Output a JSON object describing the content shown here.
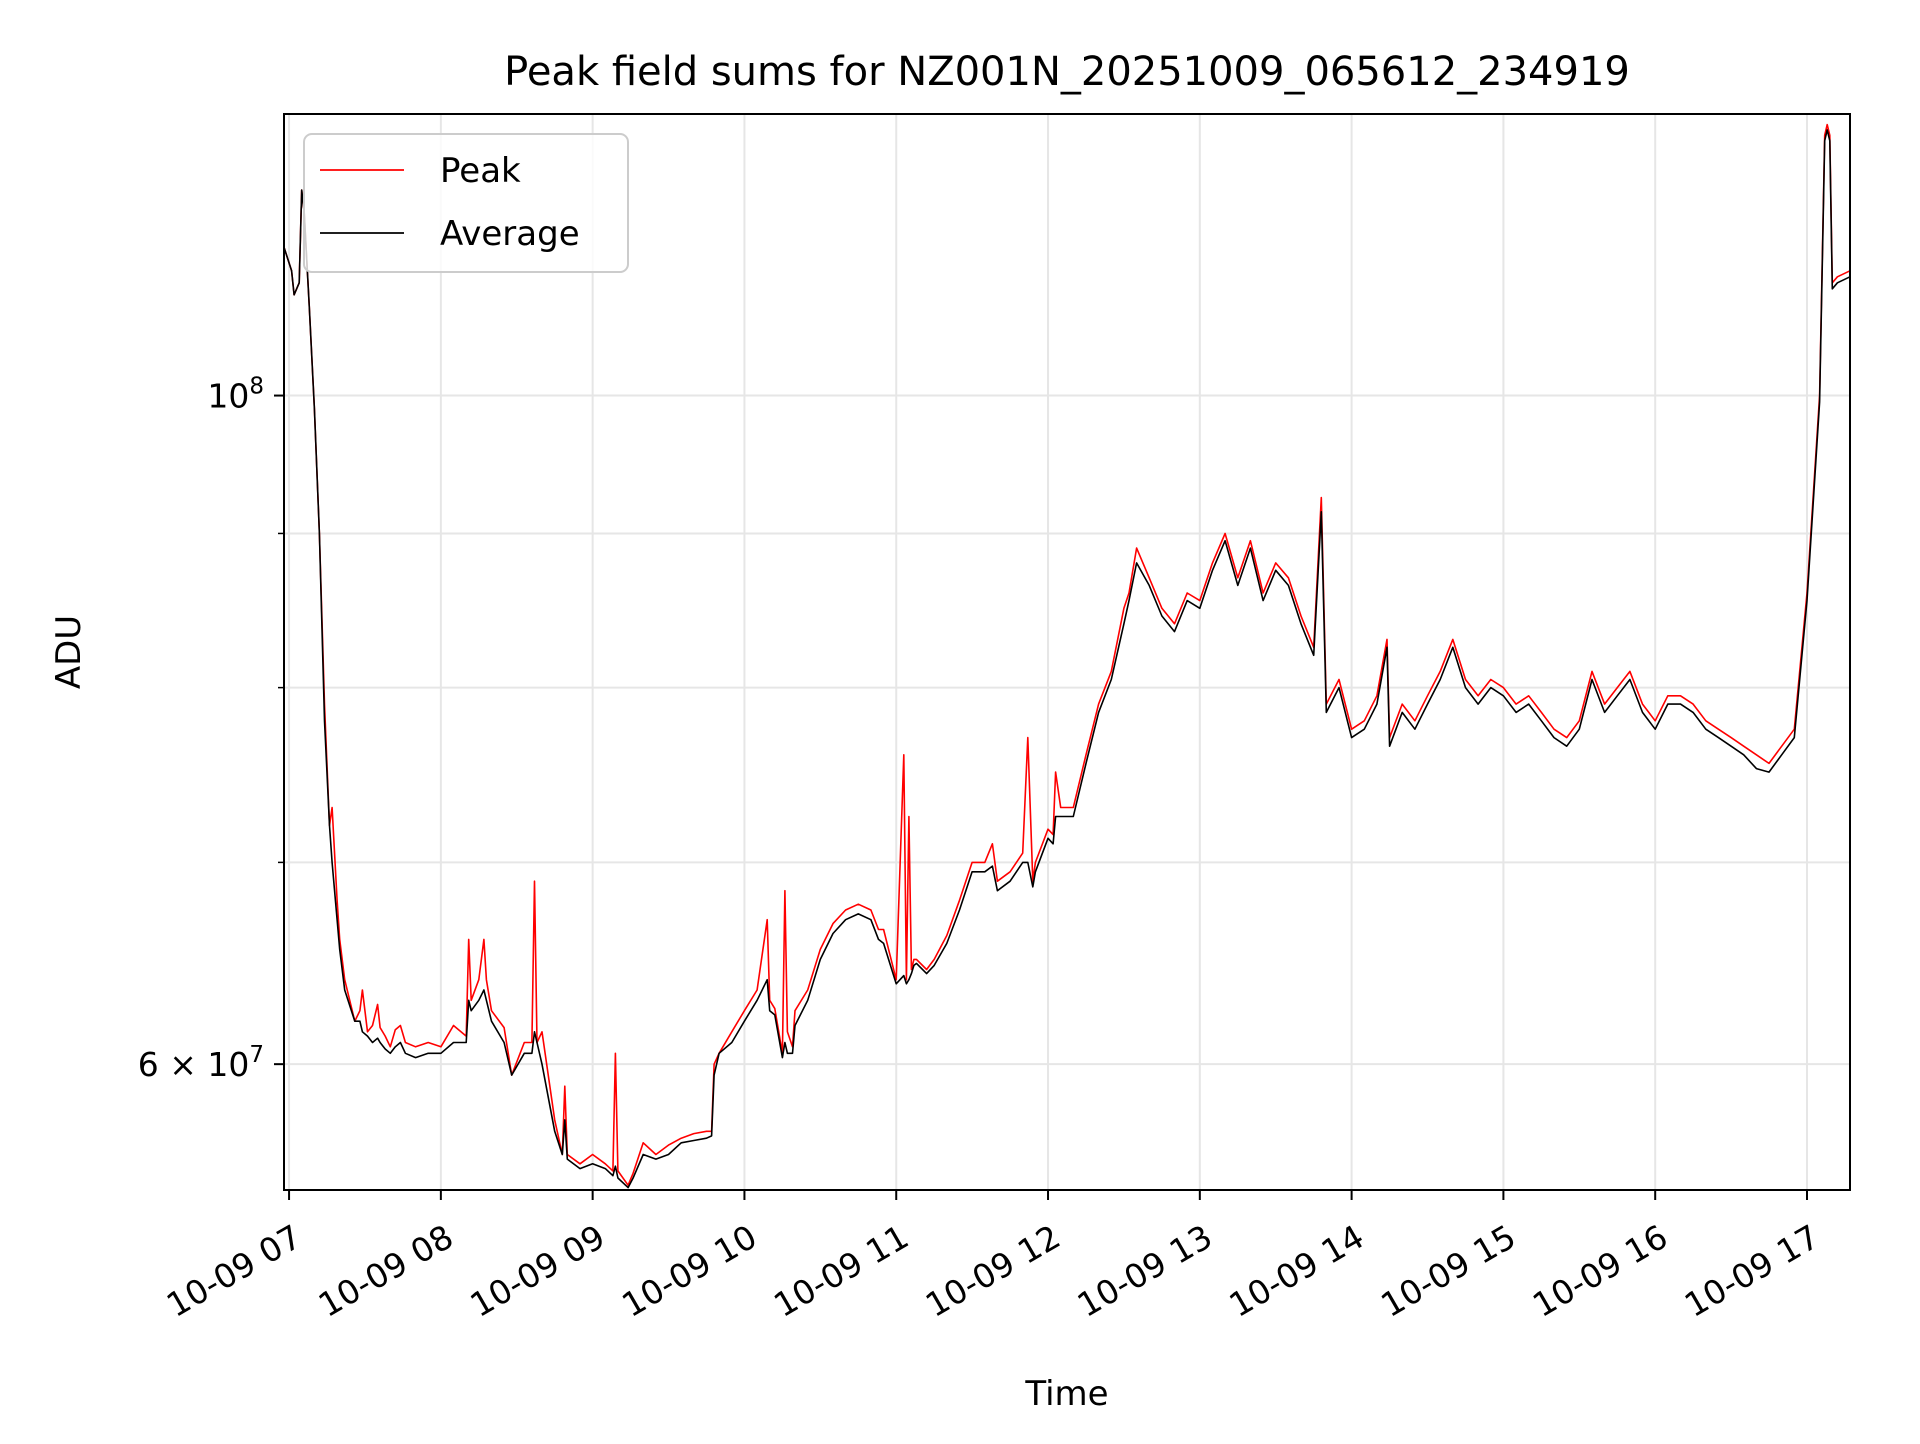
{
  "chart_data": {
    "type": "line",
    "title": "Peak field sums for NZ001N_20251009_065612_234919",
    "xlabel": "Time",
    "ylabel": "ADU",
    "y_scale": "log",
    "grid": true,
    "legend_position": "upper-left",
    "xlim": [
      "2025-10-09 06:58",
      "2025-10-09 17:17"
    ],
    "ylim": [
      54500000,
      124000000
    ],
    "x_ticks": [
      {
        "value": "2025-10-09 07:00",
        "label": "10-09 07"
      },
      {
        "value": "2025-10-09 08:00",
        "label": "10-09 08"
      },
      {
        "value": "2025-10-09 09:00",
        "label": "10-09 09"
      },
      {
        "value": "2025-10-09 10:00",
        "label": "10-09 10"
      },
      {
        "value": "2025-10-09 11:00",
        "label": "10-09 11"
      },
      {
        "value": "2025-10-09 12:00",
        "label": "10-09 12"
      },
      {
        "value": "2025-10-09 13:00",
        "label": "10-09 13"
      },
      {
        "value": "2025-10-09 14:00",
        "label": "10-09 14"
      },
      {
        "value": "2025-10-09 15:00",
        "label": "10-09 15"
      },
      {
        "value": "2025-10-09 16:00",
        "label": "10-09 16"
      },
      {
        "value": "2025-10-09 17:00",
        "label": "10-09 17"
      }
    ],
    "y_ticks_major": [
      {
        "value": 60000000,
        "label_base": "6 × 10",
        "label_exp": "7"
      },
      {
        "value": 100000000,
        "label_base": "10",
        "label_exp": "8"
      }
    ],
    "y_ticks_minor": [
      70000000,
      80000000,
      90000000
    ],
    "series": [
      {
        "name": "Peak",
        "color": "#ff0000",
        "x": [
          "2025-10-09 06:58",
          "2025-10-09 07:01",
          "2025-10-09 07:02",
          "2025-10-09 07:04",
          "2025-10-09 07:05",
          "2025-10-09 07:06",
          "2025-10-09 07:08",
          "2025-10-09 07:10",
          "2025-10-09 07:12",
          "2025-10-09 07:14",
          "2025-10-09 07:16",
          "2025-10-09 07:17",
          "2025-10-09 07:19",
          "2025-10-09 07:20",
          "2025-10-09 07:22",
          "2025-10-09 07:26",
          "2025-10-09 07:28",
          "2025-10-09 07:29",
          "2025-10-09 07:31",
          "2025-10-09 07:33",
          "2025-10-09 07:35",
          "2025-10-09 07:36",
          "2025-10-09 07:38",
          "2025-10-09 07:40",
          "2025-10-09 07:42",
          "2025-10-09 07:44",
          "2025-10-09 07:46",
          "2025-10-09 07:50",
          "2025-10-09 07:55",
          "2025-10-09 08:00",
          "2025-10-09 08:05",
          "2025-10-09 08:10",
          "2025-10-09 08:11",
          "2025-10-09 08:12",
          "2025-10-09 08:15",
          "2025-10-09 08:17",
          "2025-10-09 08:18",
          "2025-10-09 08:20",
          "2025-10-09 08:25",
          "2025-10-09 08:28",
          "2025-10-09 08:33",
          "2025-10-09 08:36",
          "2025-10-09 08:37",
          "2025-10-09 08:38",
          "2025-10-09 08:40",
          "2025-10-09 08:45",
          "2025-10-09 08:48",
          "2025-10-09 08:49",
          "2025-10-09 08:50",
          "2025-10-09 08:55",
          "2025-10-09 09:00",
          "2025-10-09 09:05",
          "2025-10-09 09:08",
          "2025-10-09 09:09",
          "2025-10-09 09:10",
          "2025-10-09 09:14",
          "2025-10-09 09:16",
          "2025-10-09 09:20",
          "2025-10-09 09:25",
          "2025-10-09 09:30",
          "2025-10-09 09:35",
          "2025-10-09 09:40",
          "2025-10-09 09:45",
          "2025-10-09 09:47",
          "2025-10-09 09:48",
          "2025-10-09 09:50",
          "2025-10-09 09:55",
          "2025-10-09 10:00",
          "2025-10-09 10:05",
          "2025-10-09 10:09",
          "2025-10-09 10:10",
          "2025-10-09 10:12",
          "2025-10-09 10:15",
          "2025-10-09 10:16",
          "2025-10-09 10:17",
          "2025-10-09 10:19",
          "2025-10-09 10:20",
          "2025-10-09 10:25",
          "2025-10-09 10:30",
          "2025-10-09 10:35",
          "2025-10-09 10:40",
          "2025-10-09 10:45",
          "2025-10-09 10:50",
          "2025-10-09 10:53",
          "2025-10-09 10:55",
          "2025-10-09 11:00",
          "2025-10-09 11:03",
          "2025-10-09 11:04",
          "2025-10-09 11:05",
          "2025-10-09 11:06",
          "2025-10-09 11:07",
          "2025-10-09 11:08",
          "2025-10-09 11:12",
          "2025-10-09 11:15",
          "2025-10-09 11:20",
          "2025-10-09 11:25",
          "2025-10-09 11:30",
          "2025-10-09 11:35",
          "2025-10-09 11:38",
          "2025-10-09 11:40",
          "2025-10-09 11:45",
          "2025-10-09 11:50",
          "2025-10-09 11:52",
          "2025-10-09 11:54",
          "2025-10-09 11:55",
          "2025-10-09 12:00",
          "2025-10-09 12:02",
          "2025-10-09 12:03",
          "2025-10-09 12:05",
          "2025-10-09 12:10",
          "2025-10-09 12:15",
          "2025-10-09 12:20",
          "2025-10-09 12:25",
          "2025-10-09 12:30",
          "2025-10-09 12:32",
          "2025-10-09 12:35",
          "2025-10-09 12:40",
          "2025-10-09 12:45",
          "2025-10-09 12:50",
          "2025-10-09 12:55",
          "2025-10-09 13:00",
          "2025-10-09 13:05",
          "2025-10-09 13:10",
          "2025-10-09 13:15",
          "2025-10-09 13:20",
          "2025-10-09 13:25",
          "2025-10-09 13:30",
          "2025-10-09 13:35",
          "2025-10-09 13:40",
          "2025-10-09 13:45",
          "2025-10-09 13:48",
          "2025-10-09 13:50",
          "2025-10-09 13:55",
          "2025-10-09 14:00",
          "2025-10-09 14:05",
          "2025-10-09 14:10",
          "2025-10-09 14:14",
          "2025-10-09 14:15",
          "2025-10-09 14:20",
          "2025-10-09 14:25",
          "2025-10-09 14:30",
          "2025-10-09 14:35",
          "2025-10-09 14:40",
          "2025-10-09 14:45",
          "2025-10-09 14:50",
          "2025-10-09 14:55",
          "2025-10-09 15:00",
          "2025-10-09 15:05",
          "2025-10-09 15:10",
          "2025-10-09 15:15",
          "2025-10-09 15:20",
          "2025-10-09 15:25",
          "2025-10-09 15:30",
          "2025-10-09 15:35",
          "2025-10-09 15:40",
          "2025-10-09 15:45",
          "2025-10-09 15:50",
          "2025-10-09 15:55",
          "2025-10-09 16:00",
          "2025-10-09 16:05",
          "2025-10-09 16:10",
          "2025-10-09 16:15",
          "2025-10-09 16:20",
          "2025-10-09 16:25",
          "2025-10-09 16:30",
          "2025-10-09 16:35",
          "2025-10-09 16:40",
          "2025-10-09 16:45",
          "2025-10-09 16:50",
          "2025-10-09 16:55",
          "2025-10-09 17:00",
          "2025-10-09 17:05",
          "2025-10-09 17:07",
          "2025-10-09 17:08",
          "2025-10-09 17:09",
          "2025-10-09 17:10",
          "2025-10-09 17:12",
          "2025-10-09 17:17"
        ],
        "values": [
          112000000,
          110000000,
          108000000,
          109000000,
          117000000,
          115000000,
          107000000,
          99000000,
          90000000,
          79000000,
          72000000,
          73000000,
          68000000,
          66000000,
          64000000,
          62000000,
          62500000,
          63500000,
          61500000,
          61800000,
          62800000,
          61700000,
          61300000,
          60800000,
          61600000,
          61800000,
          61000000,
          60800000,
          61000000,
          60800000,
          61800000,
          61300000,
          66000000,
          63000000,
          64000000,
          66000000,
          64000000,
          62500000,
          61700000,
          59500000,
          61000000,
          61000000,
          69000000,
          61000000,
          61500000,
          57500000,
          56000000,
          59000000,
          56000000,
          55600000,
          56000000,
          55600000,
          55300000,
          60500000,
          55300000,
          54700000,
          55200000,
          56500000,
          56000000,
          56400000,
          56700000,
          56900000,
          57000000,
          57000000,
          60000000,
          60500000,
          61500000,
          62500000,
          63500000,
          67000000,
          63000000,
          62600000,
          60500000,
          68500000,
          61500000,
          60800000,
          62500000,
          63500000,
          65500000,
          66800000,
          67500000,
          67800000,
          67500000,
          66500000,
          66500000,
          64000000,
          76000000,
          64000000,
          72500000,
          64500000,
          65000000,
          65000000,
          64500000,
          65000000,
          66200000,
          68000000,
          70000000,
          70000000,
          71000000,
          69000000,
          69500000,
          70500000,
          77000000,
          69000000,
          70000000,
          71800000,
          71500000,
          75000000,
          73000000,
          73000000,
          76000000,
          79000000,
          81000000,
          85000000,
          86000000,
          89000000,
          87000000,
          85000000,
          84000000,
          86000000,
          85500000,
          88000000,
          90000000,
          87000000,
          89500000,
          86000000,
          88000000,
          87000000,
          84500000,
          82500000,
          92500000,
          79000000,
          80500000,
          77500000,
          78000000,
          79500000,
          83000000,
          77000000,
          79000000,
          78000000,
          79500000,
          81000000,
          83000000,
          80500000,
          79500000,
          80500000,
          80000000,
          79000000,
          79500000,
          78500000,
          77500000,
          77000000,
          78000000,
          81000000,
          79000000,
          80000000,
          81000000,
          79000000,
          78000000,
          79500000,
          79500000,
          79000000,
          78000000,
          77500000,
          77000000,
          76500000,
          76000000,
          75500000,
          76500000,
          77500000,
          86000000,
          100000000,
          122000000,
          123000000,
          122000000,
          109000000,
          109500000,
          110000000
        ]
      },
      {
        "name": "Average",
        "color": "#000000",
        "x": [
          "2025-10-09 06:58",
          "2025-10-09 07:01",
          "2025-10-09 07:02",
          "2025-10-09 07:04",
          "2025-10-09 07:05",
          "2025-10-09 07:06",
          "2025-10-09 07:08",
          "2025-10-09 07:10",
          "2025-10-09 07:12",
          "2025-10-09 07:14",
          "2025-10-09 07:16",
          "2025-10-09 07:17",
          "2025-10-09 07:19",
          "2025-10-09 07:20",
          "2025-10-09 07:22",
          "2025-10-09 07:26",
          "2025-10-09 07:28",
          "2025-10-09 07:29",
          "2025-10-09 07:31",
          "2025-10-09 07:33",
          "2025-10-09 07:35",
          "2025-10-09 07:36",
          "2025-10-09 07:38",
          "2025-10-09 07:40",
          "2025-10-09 07:42",
          "2025-10-09 07:44",
          "2025-10-09 07:46",
          "2025-10-09 07:50",
          "2025-10-09 07:55",
          "2025-10-09 08:00",
          "2025-10-09 08:05",
          "2025-10-09 08:10",
          "2025-10-09 08:11",
          "2025-10-09 08:12",
          "2025-10-09 08:15",
          "2025-10-09 08:17",
          "2025-10-09 08:18",
          "2025-10-09 08:20",
          "2025-10-09 08:25",
          "2025-10-09 08:28",
          "2025-10-09 08:33",
          "2025-10-09 08:36",
          "2025-10-09 08:37",
          "2025-10-09 08:38",
          "2025-10-09 08:40",
          "2025-10-09 08:45",
          "2025-10-09 08:48",
          "2025-10-09 08:49",
          "2025-10-09 08:50",
          "2025-10-09 08:55",
          "2025-10-09 09:00",
          "2025-10-09 09:05",
          "2025-10-09 09:08",
          "2025-10-09 09:09",
          "2025-10-09 09:10",
          "2025-10-09 09:14",
          "2025-10-09 09:16",
          "2025-10-09 09:20",
          "2025-10-09 09:25",
          "2025-10-09 09:30",
          "2025-10-09 09:35",
          "2025-10-09 09:40",
          "2025-10-09 09:45",
          "2025-10-09 09:47",
          "2025-10-09 09:48",
          "2025-10-09 09:50",
          "2025-10-09 09:55",
          "2025-10-09 10:00",
          "2025-10-09 10:05",
          "2025-10-09 10:09",
          "2025-10-09 10:10",
          "2025-10-09 10:12",
          "2025-10-09 10:15",
          "2025-10-09 10:16",
          "2025-10-09 10:17",
          "2025-10-09 10:19",
          "2025-10-09 10:20",
          "2025-10-09 10:25",
          "2025-10-09 10:30",
          "2025-10-09 10:35",
          "2025-10-09 10:40",
          "2025-10-09 10:45",
          "2025-10-09 10:50",
          "2025-10-09 10:53",
          "2025-10-09 10:55",
          "2025-10-09 11:00",
          "2025-10-09 11:03",
          "2025-10-09 11:04",
          "2025-10-09 11:05",
          "2025-10-09 11:06",
          "2025-10-09 11:07",
          "2025-10-09 11:08",
          "2025-10-09 11:12",
          "2025-10-09 11:15",
          "2025-10-09 11:20",
          "2025-10-09 11:25",
          "2025-10-09 11:30",
          "2025-10-09 11:35",
          "2025-10-09 11:38",
          "2025-10-09 11:40",
          "2025-10-09 11:45",
          "2025-10-09 11:50",
          "2025-10-09 11:52",
          "2025-10-09 11:54",
          "2025-10-09 11:55",
          "2025-10-09 12:00",
          "2025-10-09 12:02",
          "2025-10-09 12:03",
          "2025-10-09 12:05",
          "2025-10-09 12:10",
          "2025-10-09 12:15",
          "2025-10-09 12:20",
          "2025-10-09 12:25",
          "2025-10-09 12:30",
          "2025-10-09 12:32",
          "2025-10-09 12:35",
          "2025-10-09 12:40",
          "2025-10-09 12:45",
          "2025-10-09 12:50",
          "2025-10-09 12:55",
          "2025-10-09 13:00",
          "2025-10-09 13:05",
          "2025-10-09 13:10",
          "2025-10-09 13:15",
          "2025-10-09 13:20",
          "2025-10-09 13:25",
          "2025-10-09 13:30",
          "2025-10-09 13:35",
          "2025-10-09 13:40",
          "2025-10-09 13:45",
          "2025-10-09 13:48",
          "2025-10-09 13:50",
          "2025-10-09 13:55",
          "2025-10-09 14:00",
          "2025-10-09 14:05",
          "2025-10-09 14:10",
          "2025-10-09 14:14",
          "2025-10-09 14:15",
          "2025-10-09 14:20",
          "2025-10-09 14:25",
          "2025-10-09 14:30",
          "2025-10-09 14:35",
          "2025-10-09 14:40",
          "2025-10-09 14:45",
          "2025-10-09 14:50",
          "2025-10-09 14:55",
          "2025-10-09 15:00",
          "2025-10-09 15:05",
          "2025-10-09 15:10",
          "2025-10-09 15:15",
          "2025-10-09 15:20",
          "2025-10-09 15:25",
          "2025-10-09 15:30",
          "2025-10-09 15:35",
          "2025-10-09 15:40",
          "2025-10-09 15:45",
          "2025-10-09 15:50",
          "2025-10-09 15:55",
          "2025-10-09 16:00",
          "2025-10-09 16:05",
          "2025-10-09 16:10",
          "2025-10-09 16:15",
          "2025-10-09 16:20",
          "2025-10-09 16:25",
          "2025-10-09 16:30",
          "2025-10-09 16:35",
          "2025-10-09 16:40",
          "2025-10-09 16:45",
          "2025-10-09 16:50",
          "2025-10-09 16:55",
          "2025-10-09 17:00",
          "2025-10-09 17:05",
          "2025-10-09 17:07",
          "2025-10-09 17:08",
          "2025-10-09 17:09",
          "2025-10-09 17:10",
          "2025-10-09 17:12",
          "2025-10-09 17:17"
        ],
        "values": [
          112000000,
          110000000,
          108000000,
          109000000,
          117000000,
          115000000,
          107000000,
          99000000,
          90000000,
          78000000,
          72000000,
          70000000,
          67000000,
          65500000,
          63500000,
          62000000,
          62000000,
          61500000,
          61300000,
          61000000,
          61200000,
          61000000,
          60700000,
          60500000,
          60800000,
          61000000,
          60500000,
          60300000,
          60500000,
          60500000,
          61000000,
          61000000,
          63000000,
          62500000,
          63000000,
          63500000,
          63000000,
          62000000,
          61000000,
          59500000,
          60500000,
          60500000,
          61500000,
          61000000,
          60000000,
          57000000,
          56000000,
          57500000,
          55800000,
          55400000,
          55600000,
          55400000,
          55100000,
          55500000,
          55000000,
          54600000,
          55000000,
          56000000,
          55800000,
          56000000,
          56500000,
          56600000,
          56700000,
          56800000,
          59500000,
          60500000,
          61000000,
          62000000,
          63000000,
          64000000,
          62500000,
          62300000,
          60300000,
          61000000,
          60500000,
          60500000,
          61800000,
          63000000,
          65000000,
          66300000,
          67000000,
          67300000,
          67000000,
          66000000,
          65800000,
          63800000,
          64200000,
          63800000,
          64000000,
          64300000,
          64700000,
          64800000,
          64300000,
          64700000,
          65800000,
          67500000,
          69500000,
          69500000,
          69800000,
          68500000,
          69000000,
          70000000,
          70000000,
          68700000,
          69500000,
          71300000,
          71000000,
          72500000,
          72500000,
          72500000,
          75500000,
          78500000,
          80500000,
          84000000,
          85500000,
          88000000,
          86500000,
          84500000,
          83500000,
          85500000,
          85000000,
          87500000,
          89500000,
          86500000,
          89000000,
          85500000,
          87500000,
          86500000,
          84000000,
          82000000,
          91500000,
          78500000,
          80000000,
          77000000,
          77500000,
          79000000,
          82500000,
          76500000,
          78500000,
          77500000,
          79000000,
          80500000,
          82500000,
          80000000,
          79000000,
          80000000,
          79500000,
          78500000,
          79000000,
          78000000,
          77000000,
          76500000,
          77500000,
          80500000,
          78500000,
          79500000,
          80500000,
          78500000,
          77500000,
          79000000,
          79000000,
          78500000,
          77500000,
          77000000,
          76500000,
          76000000,
          75200000,
          75000000,
          76000000,
          77000000,
          85500000,
          99500000,
          121500000,
          122500000,
          121500000,
          108500000,
          109000000,
          109500000
        ]
      }
    ]
  }
}
